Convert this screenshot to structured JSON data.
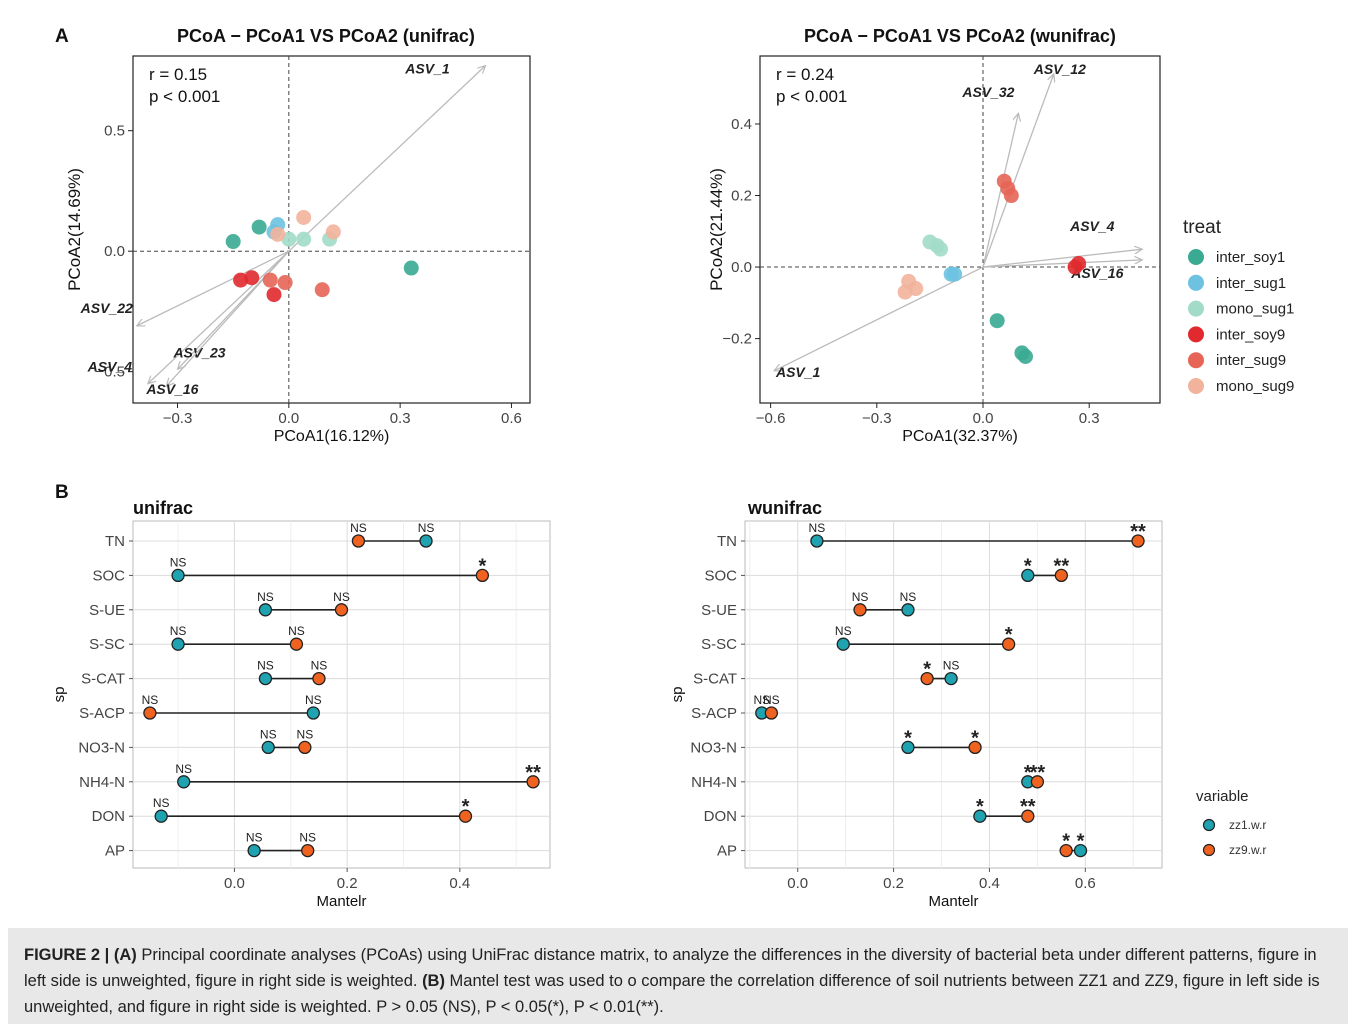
{
  "panel_labels": {
    "a": "A",
    "b": "B"
  },
  "caption": {
    "label": "FIGURE 2 | ",
    "a_tag": "(A)",
    "a_text": " Principal coordinate analyses (PCoAs) using UniFrac distance matrix, to analyze the differences in the diversity of bacterial beta under different patterns, figure in left side is unweighted, figure in right side is weighted. ",
    "b_tag": "(B)",
    "b_text": " Mantel test was used to o compare the correlation difference of soil nutrients between ZZ1 and ZZ9, figure in left side is unweighted, and figure in right side is weighted. P > 0.05 (NS), P < 0.05(*), P < 0.01(**)."
  },
  "colors": {
    "inter_soy1": "#3aaa92",
    "inter_sug1": "#6cc2e0",
    "mono_sug1": "#a2dcc8",
    "inter_soy9": "#e02a2e",
    "inter_sug9": "#e66556",
    "mono_sug9": "#f2b39c",
    "zz1": "#1fa3b0",
    "zz9": "#f0621f",
    "arrow": "#bbbbbb"
  },
  "chart_data": [
    {
      "type": "scatter",
      "id": "pcoa_unifrac",
      "title": "PCoA − PCoA1 VS PCoA2 (unifrac)",
      "xlabel": "PCoA1(16.12%)",
      "ylabel": "PCoA2(14.69%)",
      "xlim": [
        -0.42,
        0.65
      ],
      "ylim": [
        -0.63,
        0.81
      ],
      "xticks": [
        -0.3,
        0.0,
        0.3,
        0.6
      ],
      "xtick_labels": [
        "−0.3",
        "0.0",
        "0.3",
        "0.6"
      ],
      "yticks": [
        -0.5,
        0.0,
        0.5
      ],
      "ytick_labels": [
        "−0.5",
        "0.0",
        "0.5"
      ],
      "grid": false,
      "stats": [
        "r = 0.15",
        "p < 0.001"
      ],
      "series": [
        {
          "name": "inter_soy1",
          "points": [
            [
              -0.15,
              0.04
            ],
            [
              -0.08,
              0.1
            ],
            [
              0.33,
              -0.07
            ]
          ]
        },
        {
          "name": "inter_sug1",
          "points": [
            [
              -0.03,
              0.11
            ],
            [
              -0.04,
              0.08
            ]
          ]
        },
        {
          "name": "mono_sug1",
          "points": [
            [
              0.0,
              0.05
            ],
            [
              0.04,
              0.05
            ],
            [
              0.11,
              0.05
            ]
          ]
        },
        {
          "name": "inter_soy9",
          "points": [
            [
              -0.13,
              -0.12
            ],
            [
              -0.04,
              -0.18
            ],
            [
              -0.1,
              -0.11
            ]
          ]
        },
        {
          "name": "inter_sug9",
          "points": [
            [
              -0.05,
              -0.12
            ],
            [
              -0.01,
              -0.13
            ],
            [
              0.09,
              -0.16
            ]
          ]
        },
        {
          "name": "mono_sug9",
          "points": [
            [
              0.04,
              0.14
            ],
            [
              0.12,
              0.08
            ],
            [
              -0.03,
              0.07
            ]
          ]
        }
      ],
      "vectors": [
        {
          "name": "ASV_1",
          "x": 0.53,
          "y": 0.77
        },
        {
          "name": "ASV_22",
          "x": -0.41,
          "y": -0.31
        },
        {
          "name": "ASV_4",
          "x": -0.38,
          "y": -0.55
        },
        {
          "name": "ASV_23",
          "x": -0.3,
          "y": -0.49
        },
        {
          "name": "ASV_16",
          "x": -0.33,
          "y": -0.56
        }
      ]
    },
    {
      "type": "scatter",
      "id": "pcoa_wunifrac",
      "title": "PCoA − PCoA1 VS PCoA2 (wunifrac)",
      "xlabel": "PCoA1(32.37%)",
      "ylabel": "PCoA2(21.44%)",
      "xlim": [
        -0.63,
        0.5
      ],
      "ylim": [
        -0.38,
        0.59
      ],
      "xticks": [
        -0.6,
        -0.3,
        0.0,
        0.3
      ],
      "xtick_labels": [
        "−0.6",
        "−0.3",
        "0.0",
        "0.3"
      ],
      "yticks": [
        -0.2,
        0.0,
        0.2,
        0.4
      ],
      "ytick_labels": [
        "−0.2",
        "0.0",
        "0.2",
        "0.4"
      ],
      "grid": false,
      "stats": [
        "r = 0.24",
        "p < 0.001"
      ],
      "legend_title": "treat",
      "legend_labels": [
        "inter_soy1",
        "inter_sug1",
        "mono_sug1",
        "inter_soy9",
        "inter_sug9",
        "mono_sug9"
      ],
      "series": [
        {
          "name": "inter_soy1",
          "points": [
            [
              0.04,
              -0.15
            ],
            [
              0.11,
              -0.24
            ],
            [
              0.12,
              -0.25
            ]
          ]
        },
        {
          "name": "inter_sug1",
          "points": [
            [
              -0.09,
              -0.02
            ],
            [
              -0.08,
              -0.02
            ]
          ]
        },
        {
          "name": "mono_sug1",
          "points": [
            [
              -0.15,
              0.07
            ],
            [
              -0.13,
              0.06
            ],
            [
              -0.12,
              0.05
            ]
          ]
        },
        {
          "name": "inter_soy9",
          "points": [
            [
              0.26,
              0.0
            ],
            [
              0.27,
              0.01
            ]
          ]
        },
        {
          "name": "inter_sug9",
          "points": [
            [
              0.06,
              0.24
            ],
            [
              0.07,
              0.22
            ],
            [
              0.08,
              0.2
            ]
          ]
        },
        {
          "name": "mono_sug9",
          "points": [
            [
              -0.21,
              -0.04
            ],
            [
              -0.22,
              -0.07
            ],
            [
              -0.19,
              -0.06
            ]
          ]
        }
      ],
      "vectors": [
        {
          "name": "ASV_12",
          "x": 0.2,
          "y": 0.54
        },
        {
          "name": "ASV_32",
          "x": 0.1,
          "y": 0.43
        },
        {
          "name": "ASV_4",
          "x": 0.45,
          "y": 0.05
        },
        {
          "name": "ASV_16",
          "x": 0.45,
          "y": 0.02
        },
        {
          "name": "ASV_1",
          "x": -0.59,
          "y": -0.29
        }
      ]
    },
    {
      "type": "dumbbell",
      "id": "mantel_unifrac",
      "title": "unifrac",
      "xlabel": "Mantelr",
      "ylabel": "sp",
      "xlim": [
        -0.18,
        0.56
      ],
      "xticks": [
        0.0,
        0.2,
        0.4
      ],
      "xtick_labels": [
        "0.0",
        "0.2",
        "0.4"
      ],
      "grid": true,
      "categories": [
        "TN",
        "SOC",
        "S-UE",
        "S-SC",
        "S-CAT",
        "S-ACP",
        "NO3-N",
        "NH4-N",
        "DON",
        "AP"
      ],
      "series": [
        {
          "name": "zz1.w.r",
          "values": [
            0.34,
            -0.1,
            0.055,
            -0.1,
            0.055,
            0.14,
            0.06,
            -0.09,
            -0.13,
            0.035
          ],
          "signif": [
            "NS",
            "NS",
            "NS",
            "NS",
            "NS",
            "NS",
            "NS",
            "NS",
            "NS",
            "NS"
          ]
        },
        {
          "name": "zz9.w.r",
          "values": [
            0.22,
            0.44,
            0.19,
            0.11,
            0.15,
            -0.15,
            0.125,
            0.53,
            0.41,
            0.13
          ],
          "signif": [
            "NS",
            "*",
            "NS",
            "NS",
            "NS",
            "NS",
            "NS",
            "**",
            "*",
            "NS"
          ]
        }
      ]
    },
    {
      "type": "dumbbell",
      "id": "mantel_wunifrac",
      "title": "wunifrac",
      "xlabel": "Mantelr",
      "ylabel": "sp",
      "xlim": [
        -0.11,
        0.76
      ],
      "xticks": [
        0.0,
        0.2,
        0.4,
        0.6
      ],
      "xtick_labels": [
        "0.0",
        "0.2",
        "0.4",
        "0.6"
      ],
      "grid": true,
      "legend_title": "variable",
      "legend_labels": [
        "zz1.w.r",
        "zz9.w.r"
      ],
      "categories": [
        "TN",
        "SOC",
        "S-UE",
        "S-SC",
        "S-CAT",
        "S-ACP",
        "NO3-N",
        "NH4-N",
        "DON",
        "AP"
      ],
      "series": [
        {
          "name": "zz1.w.r",
          "values": [
            0.04,
            0.48,
            0.23,
            0.095,
            0.32,
            -0.075,
            0.23,
            0.48,
            0.38,
            0.59
          ],
          "signif": [
            "NS",
            "*",
            "NS",
            "NS",
            "NS",
            "NS",
            "*",
            "*",
            "*",
            "*"
          ]
        },
        {
          "name": "zz9.w.r",
          "values": [
            0.71,
            0.55,
            0.13,
            0.44,
            0.27,
            -0.055,
            0.37,
            0.5,
            0.48,
            0.56
          ],
          "signif": [
            "**",
            "**",
            "NS",
            "*",
            "*",
            "NS",
            "*",
            "**",
            "**",
            "*"
          ]
        }
      ]
    }
  ]
}
